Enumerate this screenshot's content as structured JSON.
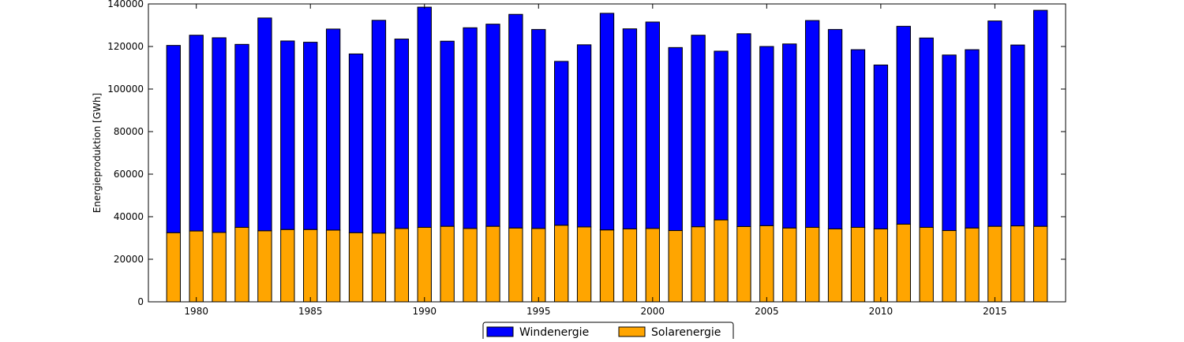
{
  "chart_data": {
    "type": "bar",
    "stacked": true,
    "title": "",
    "xlabel": "",
    "ylabel": "Energieproduktion [GWh]",
    "ylim": [
      0,
      140000
    ],
    "yticks": [
      0,
      20000,
      40000,
      60000,
      80000,
      100000,
      120000,
      140000
    ],
    "xlim": [
      1977.9,
      2018.1
    ],
    "xticks": [
      1980,
      1985,
      1990,
      1995,
      2000,
      2005,
      2010,
      2015
    ],
    "grid": false,
    "legend_position": "bottom-center",
    "years": [
      1979,
      1980,
      1981,
      1982,
      1983,
      1984,
      1985,
      1986,
      1987,
      1988,
      1989,
      1990,
      1991,
      1992,
      1993,
      1994,
      1995,
      1996,
      1997,
      1998,
      1999,
      2000,
      2001,
      2002,
      2003,
      2004,
      2005,
      2006,
      2007,
      2008,
      2009,
      2010,
      2011,
      2012,
      2013,
      2014,
      2015,
      2016,
      2017
    ],
    "series": [
      {
        "name": "Solarenergie",
        "color": "#FFA500",
        "values": [
          32500,
          33300,
          32600,
          35000,
          33400,
          34000,
          34000,
          33700,
          32500,
          32300,
          34500,
          35000,
          35500,
          34500,
          35500,
          34700,
          34500,
          36000,
          35200,
          33800,
          34300,
          34500,
          33500,
          35300,
          38500,
          35400,
          35800,
          34700,
          35000,
          34300,
          35000,
          34300,
          36500,
          35000,
          33500,
          34700,
          35500,
          35700,
          35500
        ]
      },
      {
        "name": "Windenergie",
        "color": "#0000FF",
        "values": [
          88000,
          92000,
          91500,
          86000,
          100000,
          88600,
          88000,
          94500,
          84000,
          100000,
          89000,
          103500,
          87000,
          94300,
          95000,
          100400,
          93500,
          77000,
          85600,
          101800,
          94000,
          97000,
          86000,
          90000,
          79300,
          90600,
          84200,
          86500,
          97200,
          93700,
          83500,
          77000,
          93000,
          89000,
          82500,
          83800,
          96500,
          85000,
          101500
        ]
      }
    ]
  }
}
